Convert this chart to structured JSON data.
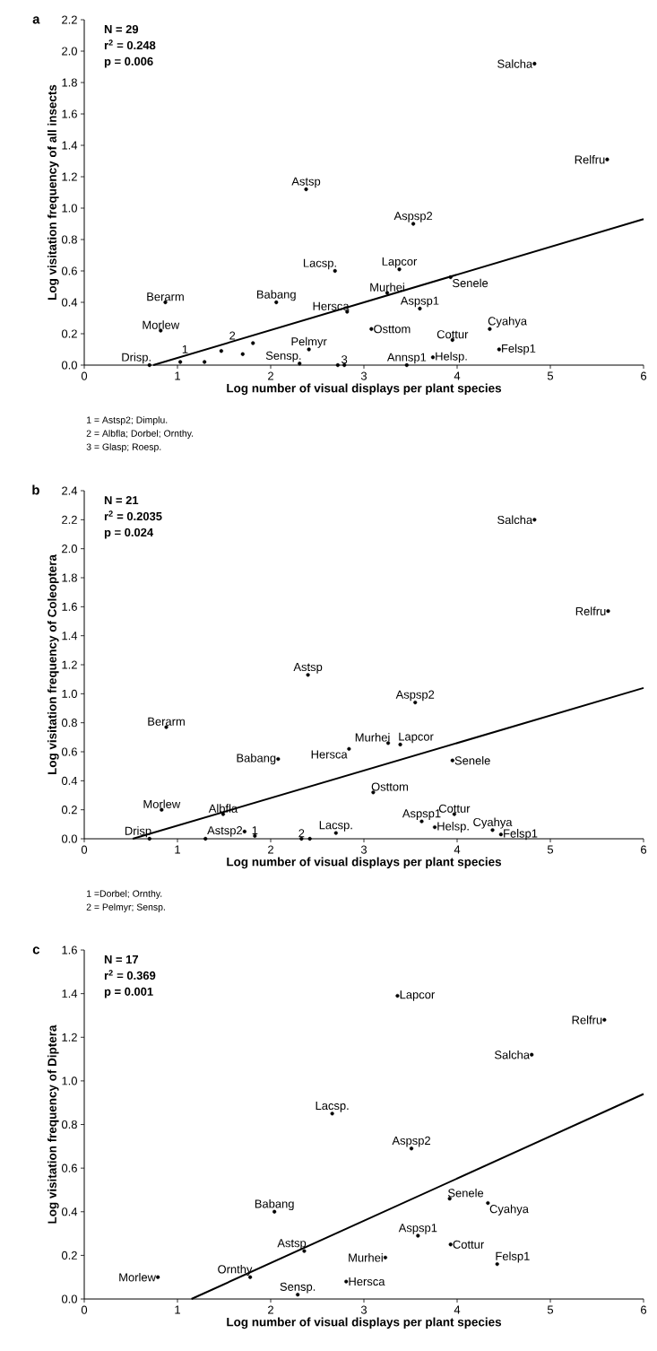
{
  "chart_data": [
    {
      "type": "scatter",
      "title": "a",
      "xlabel": "Log number of visual displays per plant species",
      "ylabel": "Log visitation frequency of all insects",
      "xlim": [
        0,
        6
      ],
      "ylim": [
        0,
        2.2
      ],
      "xticks": [
        0,
        1,
        2,
        3,
        4,
        5,
        6
      ],
      "yticks": [
        {
          "value": 0,
          "label": "0.0"
        },
        0.2,
        0.4,
        0.6,
        0.8,
        {
          "value": 1,
          "label": "1.0"
        },
        1.2,
        1.4,
        1.6,
        1.8,
        {
          "value": 2,
          "label": "2.0"
        },
        2.2
      ],
      "series": [
        {
          "marker": "circle",
          "color": "#000000",
          "x": [
            0.7,
            1.03,
            1.29,
            1.47,
            1.7,
            1.81,
            0.87,
            0.82,
            2.06,
            2.31,
            2.41,
            2.69,
            2.82,
            2.72,
            2.79,
            3.08,
            3.25,
            3.38,
            3.46,
            3.6,
            3.74,
            3.95,
            3.93,
            4.35,
            4.45,
            4.83,
            5.61,
            2.38,
            3.53
          ],
          "values": [
            0,
            0.02,
            0.02,
            0.09,
            0.07,
            0.14,
            0.4,
            0.22,
            0.4,
            0.01,
            0.1,
            0.6,
            0.34,
            0,
            0,
            0.23,
            0.46,
            0.61,
            0,
            0.36,
            0.05,
            0.16,
            0.56,
            0.23,
            0.1,
            1.92,
            1.31,
            1.12,
            0.9
          ]
        },
        {
          "type": "line",
          "marker": "none",
          "color": "#000000",
          "x": [
            0.74,
            6
          ],
          "values": [
            0,
            0.93
          ]
        }
      ],
      "annotations": [
        "N = 29",
        "r$^{2}$ = 0.248",
        "p = 0.006",
        {
          "text": "Salcha",
          "x": 4.83,
          "y": 1.92
        },
        {
          "text": "Relfru",
          "x": 5.61,
          "y": 1.31
        },
        {
          "text": "Astsp",
          "x": 2.38,
          "y": 1.12
        },
        {
          "text": "Aspsp2",
          "x": 3.53,
          "y": 0.9
        },
        {
          "text": "Lacsp.",
          "x": 2.69,
          "y": 0.6
        },
        {
          "text": "Lapcor",
          "x": 3.38,
          "y": 0.61
        },
        {
          "text": "Berarm",
          "x": 0.87,
          "y": 0.4
        },
        {
          "text": "Babang",
          "x": 2.06,
          "y": 0.4
        },
        {
          "text": "Murhei",
          "x": 3.25,
          "y": 0.46
        },
        {
          "text": "Senele",
          "x": 3.93,
          "y": 0.56
        },
        {
          "text": "Hersca",
          "x": 2.82,
          "y": 0.34
        },
        {
          "text": "Aspsp1",
          "x": 3.6,
          "y": 0.36
        },
        {
          "text": "Morlew",
          "x": 0.82,
          "y": 0.22
        },
        {
          "text": "Osttom",
          "x": 3.08,
          "y": 0.23
        },
        {
          "text": "Cottur",
          "x": 3.95,
          "y": 0.16
        },
        {
          "text": "Cyahya",
          "x": 4.35,
          "y": 0.23
        },
        {
          "text": "Pelmyr",
          "x": 2.41,
          "y": 0.1
        },
        {
          "text": "Drisp.",
          "x": 0.7,
          "y": 0
        },
        {
          "text": "Sensp.",
          "x": 2.31,
          "y": 0.01
        },
        {
          "text": "1",
          "x": 1.03,
          "y": 0.02
        },
        {
          "text": "2",
          "x": 1.47,
          "y": 0.09
        },
        {
          "text": "3",
          "x": 2.79,
          "y": 0
        },
        {
          "text": "Annsp1",
          "x": 3.46,
          "y": 0
        },
        {
          "text": "Helsp.",
          "x": 3.74,
          "y": 0.05
        },
        {
          "text": "Felsp1",
          "x": 4.45,
          "y": 0.1
        },
        "1 = Astsp2; Dimplu.",
        "2 = Albfla; Dorbel; Ornthy.",
        "3 = Glasp; Roesp."
      ]
    },
    {
      "type": "scatter",
      "title": "b",
      "xlabel": "Log number of visual displays per plant species",
      "ylabel": "Log visitation frequency of Coleoptera",
      "xlim": [
        0,
        6
      ],
      "ylim": [
        0,
        2.4
      ],
      "xticks": [
        0,
        1,
        2,
        3,
        4,
        5,
        6
      ],
      "yticks": [
        {
          "value": 0,
          "label": "0.0"
        },
        0.2,
        0.4,
        0.6,
        0.8,
        {
          "value": 1,
          "label": "1.0"
        },
        1.2,
        1.4,
        1.6,
        1.8,
        {
          "value": 2,
          "label": "2.0"
        },
        2.2,
        2.4
      ],
      "series": [
        {
          "marker": "circle",
          "color": "#000000",
          "x": [
            4.83,
            5.62,
            2.4,
            3.55,
            0.88,
            3.26,
            3.39,
            2.84,
            2.08,
            3.95,
            3.1,
            0.83,
            1.49,
            0.7,
            1.3,
            1.72,
            1.83,
            2.33,
            2.42,
            2.7,
            3.62,
            3.76,
            3.97,
            4.38,
            4.47
          ],
          "values": [
            2.2,
            1.57,
            1.13,
            0.94,
            0.77,
            0.66,
            0.65,
            0.62,
            0.55,
            0.54,
            0.32,
            0.2,
            0.17,
            0,
            0,
            0.05,
            0.02,
            0,
            0,
            0.04,
            0.12,
            0.08,
            0.17,
            0.06,
            0.03
          ]
        },
        {
          "type": "line",
          "marker": "none",
          "color": "#000000",
          "x": [
            0.52,
            6
          ],
          "values": [
            0,
            1.04
          ]
        }
      ],
      "annotations": [
        "N = 21",
        "r$^{2}$ = 0.2035",
        "p = 0.024",
        {
          "text": "Salcha",
          "x": 4.83,
          "y": 2.2
        },
        {
          "text": "Relfru",
          "x": 5.62,
          "y": 1.57
        },
        {
          "text": "Astsp",
          "x": 2.4,
          "y": 1.13
        },
        {
          "text": "Aspsp2",
          "x": 3.55,
          "y": 0.94
        },
        {
          "text": "Berarm",
          "x": 0.88,
          "y": 0.77
        },
        {
          "text": "Murhei",
          "x": 3.26,
          "y": 0.66
        },
        {
          "text": "Lapcor",
          "x": 3.39,
          "y": 0.65
        },
        {
          "text": "Hersca",
          "x": 2.84,
          "y": 0.62
        },
        {
          "text": "Babang",
          "x": 2.08,
          "y": 0.55
        },
        {
          "text": "Senele",
          "x": 3.95,
          "y": 0.54
        },
        {
          "text": "Osttom",
          "x": 3.1,
          "y": 0.32
        },
        {
          "text": "Morlew",
          "x": 0.83,
          "y": 0.2
        },
        {
          "text": "Albfla",
          "x": 1.49,
          "y": 0.17
        },
        {
          "text": "Drisp",
          "x": 0.7,
          "y": 0
        },
        {
          "text": "Astsp2",
          "x": 1.72,
          "y": 0.05
        },
        {
          "text": "1",
          "x": 1.83,
          "y": 0.02
        },
        {
          "text": "2",
          "x": 2.33,
          "y": 0
        },
        {
          "text": "Lacsp.",
          "x": 2.7,
          "y": 0.04
        },
        {
          "text": "Aspsp1",
          "x": 3.62,
          "y": 0.12
        },
        {
          "text": "Helsp.",
          "x": 3.76,
          "y": 0.08
        },
        {
          "text": "Cottur",
          "x": 3.97,
          "y": 0.17
        },
        {
          "text": "Cyahya",
          "x": 4.38,
          "y": 0.06
        },
        {
          "text": "Felsp1",
          "x": 4.47,
          "y": 0.03
        },
        "1 =Dorbel; Ornthy.",
        "2 = Pelmyr; Sensp."
      ]
    },
    {
      "type": "scatter",
      "title": "c",
      "xlabel": "Log number of visual displays per plant species",
      "ylabel": "Log visitation frequency of Diptera",
      "xlim": [
        0,
        6
      ],
      "ylim": [
        0,
        1.6
      ],
      "xticks": [
        0,
        1,
        2,
        3,
        4,
        5,
        6
      ],
      "yticks": [
        {
          "value": 0,
          "label": "0.0"
        },
        0.2,
        0.4,
        0.6,
        0.8,
        {
          "value": 1,
          "label": "1.0"
        },
        1.2,
        1.4,
        1.6
      ],
      "series": [
        {
          "marker": "circle",
          "color": "#000000",
          "x": [
            3.36,
            5.58,
            4.8,
            2.66,
            3.51,
            3.92,
            2.04,
            4.33,
            3.58,
            2.36,
            3.93,
            3.23,
            4.43,
            0.79,
            1.78,
            2.29,
            2.81
          ],
          "values": [
            1.39,
            1.28,
            1.12,
            0.85,
            0.69,
            0.46,
            0.4,
            0.44,
            0.29,
            0.22,
            0.25,
            0.19,
            0.16,
            0.1,
            0.1,
            0.02,
            0.08
          ]
        },
        {
          "type": "line",
          "marker": "none",
          "color": "#000000",
          "x": [
            1.15,
            6
          ],
          "values": [
            0,
            0.94
          ]
        }
      ],
      "annotations": [
        "N = 17",
        "r$^{2}$ = 0.369",
        "p = 0.001",
        {
          "text": "Lapcor",
          "x": 3.36,
          "y": 1.39
        },
        {
          "text": "Relfru",
          "x": 5.58,
          "y": 1.28
        },
        {
          "text": "Salcha",
          "x": 4.8,
          "y": 1.12
        },
        {
          "text": "Lacsp.",
          "x": 2.66,
          "y": 0.85
        },
        {
          "text": "Aspsp2",
          "x": 3.51,
          "y": 0.69
        },
        {
          "text": "Senele",
          "x": 3.92,
          "y": 0.46
        },
        {
          "text": "Babang",
          "x": 2.04,
          "y": 0.4
        },
        {
          "text": "Cyahya",
          "x": 4.33,
          "y": 0.44
        },
        {
          "text": "Aspsp1",
          "x": 3.58,
          "y": 0.29
        },
        {
          "text": "Astsp",
          "x": 2.36,
          "y": 0.22
        },
        {
          "text": "Cottur",
          "x": 3.93,
          "y": 0.25
        },
        {
          "text": "Murhei",
          "x": 3.23,
          "y": 0.19
        },
        {
          "text": "Felsp1",
          "x": 4.43,
          "y": 0.16
        },
        {
          "text": "Morlew",
          "x": 0.79,
          "y": 0.1
        },
        {
          "text": "Ornthy",
          "x": 1.78,
          "y": 0.1
        },
        {
          "text": "Sensp.",
          "x": 2.29,
          "y": 0.02
        },
        {
          "text": "Hersca",
          "x": 2.81,
          "y": 0.08
        }
      ]
    }
  ]
}
